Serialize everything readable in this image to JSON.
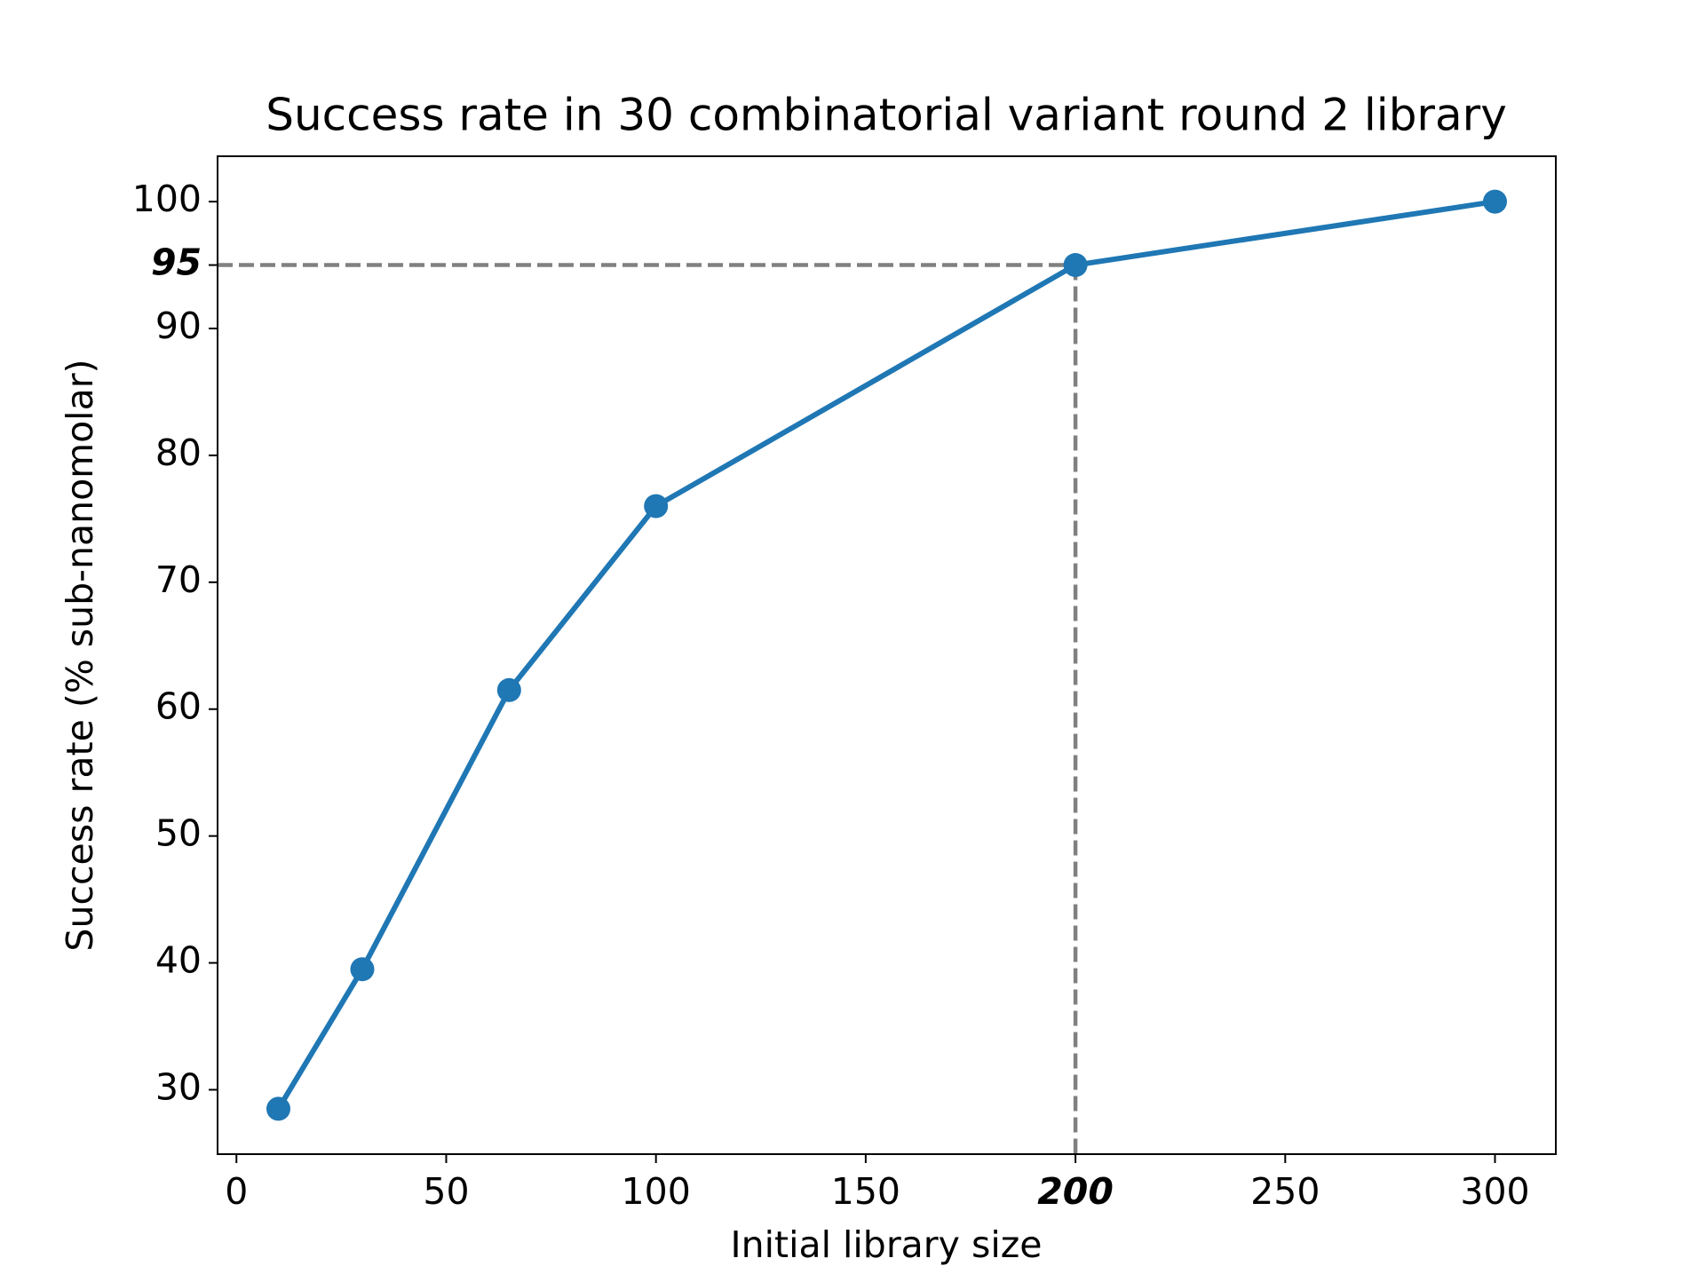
{
  "chart_data": {
    "type": "line",
    "title": "Success rate in 30 combinatorial variant round 2 library",
    "x_label": "Initial library size",
    "y_label": "Success rate (% sub-nanomolar)",
    "x": [
      10,
      30,
      65,
      100,
      200,
      300
    ],
    "series": [
      {
        "name": "Success rate",
        "color": "#1f77b4",
        "values": [
          28.5,
          39.5,
          61.5,
          76,
          95,
          100
        ]
      }
    ],
    "xlim": [
      -4.5,
      314.5
    ],
    "ylim": [
      24.925,
      103.575
    ],
    "xticks": [
      0,
      50,
      100,
      150,
      200,
      250,
      300
    ],
    "yticks": [
      30,
      40,
      50,
      60,
      70,
      80,
      90,
      95,
      100
    ],
    "reference_point": {
      "x": 200,
      "y": 95,
      "color": "#808080"
    },
    "grid": false,
    "markers": true
  }
}
